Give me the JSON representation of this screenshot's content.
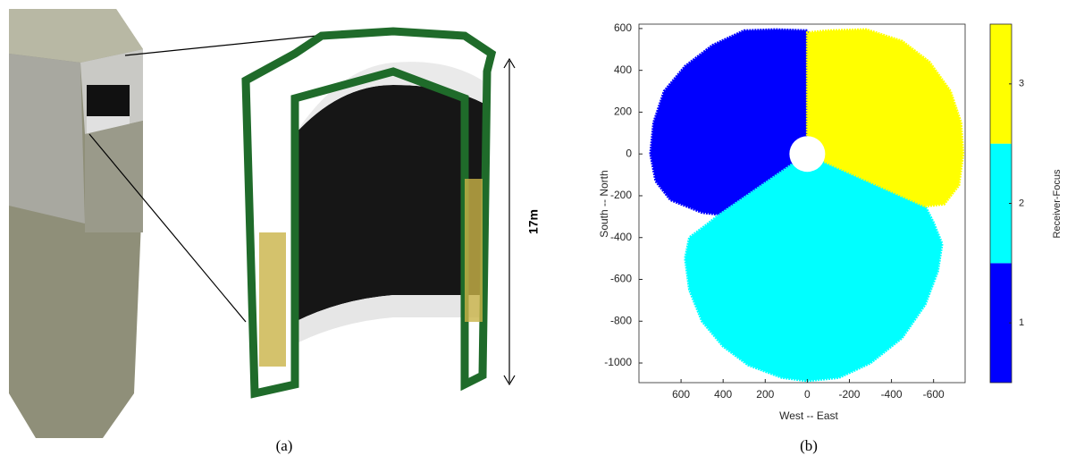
{
  "panels": [
    {
      "label": "(a)",
      "annotation": "17m"
    },
    {
      "label": "(b)"
    }
  ],
  "chart_data": {
    "type": "region",
    "xlabel": "West -- East",
    "ylabel": "South -- North",
    "xlim": [
      800,
      -750
    ],
    "ylim": [
      -1094,
      621
    ],
    "xticks": [
      600,
      400,
      200,
      0,
      -200,
      -400,
      -600
    ],
    "yticks": [
      600,
      400,
      200,
      0,
      -200,
      -400,
      -600,
      -800,
      -1000
    ],
    "colorbar": {
      "label": "Receiver-Focus",
      "lim": [
        0.5,
        3.5
      ],
      "ticks": [
        1,
        2,
        3
      ]
    },
    "series": [
      {
        "color": "#0000ff",
        "x": [
          0,
          0,
          150,
          300,
          450,
          580,
          680,
          730,
          745,
          720,
          650,
          500,
          420
        ],
        "y": [
          0,
          590,
          595,
          590,
          520,
          420,
          300,
          150,
          0,
          -130,
          -220,
          -280,
          -290
        ]
      },
      {
        "color": "#00ffff",
        "x": [
          0,
          430,
          480,
          560,
          580,
          560,
          500,
          400,
          280,
          120,
          0,
          -150,
          -300,
          -450,
          -560,
          -620,
          -640,
          -600,
          -560
        ],
        "y": [
          0,
          -300,
          -340,
          -400,
          -500,
          -650,
          -800,
          -920,
          -1010,
          -1070,
          -1085,
          -1070,
          -1000,
          -880,
          -720,
          -560,
          -430,
          -330,
          -250
        ]
      },
      {
        "color": "#ffff00",
        "x": [
          0,
          -560,
          -650,
          -720,
          -740,
          -730,
          -680,
          -580,
          -450,
          -280,
          -100,
          0
        ],
        "y": [
          0,
          -250,
          -240,
          -150,
          0,
          150,
          300,
          440,
          540,
          595,
          590,
          580
        ]
      }
    ]
  }
}
